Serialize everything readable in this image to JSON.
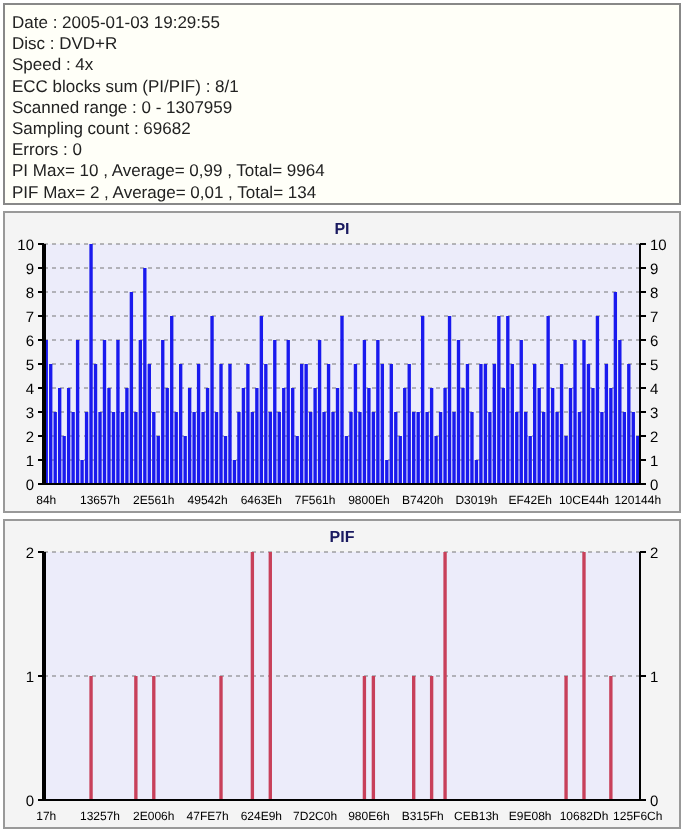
{
  "chart_data": [
    {
      "type": "bar",
      "title": "PI",
      "annotations": [
        "Date : 2005-01-03 19:29:55",
        "Disc : DVD+R",
        "Speed : 4x",
        "ECC blocks sum (PI/PIF) : 8/1",
        "Scanned range : 0 - 1307959",
        "Sampling count : 69682",
        "Errors : 0",
        "PI Max= 10 , Average= 0,99 , Total= 9964",
        "PIF Max= 2 , Average= 0,01 , Total= 134"
      ],
      "categories": [
        "84h",
        null,
        null,
        null,
        null,
        null,
        null,
        null,
        null,
        null,
        null,
        null,
        "13657h",
        null,
        null,
        null,
        null,
        null,
        null,
        null,
        null,
        null,
        null,
        null,
        "2E561h",
        null,
        null,
        null,
        null,
        null,
        null,
        null,
        null,
        null,
        null,
        null,
        "49542h",
        null,
        null,
        null,
        null,
        null,
        null,
        null,
        null,
        null,
        null,
        null,
        "6463Eh",
        null,
        null,
        null,
        null,
        null,
        null,
        null,
        null,
        null,
        null,
        null,
        "7F561h",
        null,
        null,
        null,
        null,
        null,
        null,
        null,
        null,
        null,
        null,
        null,
        "9800Eh",
        null,
        null,
        null,
        null,
        null,
        null,
        null,
        null,
        null,
        null,
        null,
        "B7420h",
        null,
        null,
        null,
        null,
        null,
        null,
        null,
        null,
        null,
        null,
        null,
        "D3019h",
        null,
        null,
        null,
        null,
        null,
        null,
        null,
        null,
        null,
        null,
        null,
        "EF42Eh",
        null,
        null,
        null,
        null,
        null,
        null,
        null,
        null,
        null,
        null,
        null,
        "10CE44h",
        null,
        null,
        null,
        null,
        null,
        null,
        null,
        null,
        null,
        null,
        null,
        "120144h"
      ],
      "series": [
        {
          "color": "#1a1aee",
          "values": [
            6,
            5,
            3,
            4,
            2,
            4,
            3,
            6,
            1,
            3,
            10,
            5,
            3,
            6,
            4,
            3,
            6,
            3,
            4,
            8,
            3,
            6,
            9,
            5,
            3,
            2,
            6,
            4,
            7,
            3,
            5,
            2,
            4,
            3,
            5,
            3,
            4,
            7,
            3,
            5,
            2,
            5,
            1,
            3,
            4,
            5,
            3,
            4,
            7,
            5,
            3,
            6,
            3,
            4,
            6,
            4,
            2,
            5,
            5,
            3,
            4,
            6,
            3,
            5,
            3,
            4,
            7,
            2,
            3,
            5,
            3,
            6,
            4,
            3,
            6,
            5,
            1,
            5,
            3,
            2,
            4,
            5,
            3,
            3,
            7,
            3,
            4,
            2,
            3,
            4,
            7,
            3,
            6,
            4,
            5,
            3,
            1,
            5,
            5,
            3,
            5,
            7,
            4,
            7,
            5,
            3,
            6,
            3,
            2,
            5,
            4,
            3,
            7,
            4,
            3,
            5,
            2,
            4,
            6,
            3,
            6,
            5,
            4,
            7,
            3,
            5,
            4,
            8,
            6,
            3,
            5,
            3,
            2
          ]
        }
      ],
      "ylim": [
        0,
        10
      ],
      "yticks": [
        0,
        1,
        2,
        3,
        4,
        5,
        6,
        7,
        8,
        9,
        10
      ],
      "y2lim": [
        0,
        10
      ],
      "y2ticks": [
        0,
        1,
        2,
        3,
        4,
        5,
        6,
        7,
        8,
        9,
        10
      ],
      "grid": "y"
    },
    {
      "type": "bar",
      "title": "PIF",
      "categories": [
        "17h",
        null,
        null,
        null,
        null,
        null,
        null,
        null,
        null,
        null,
        null,
        null,
        "13257h",
        null,
        null,
        null,
        null,
        null,
        null,
        null,
        null,
        null,
        null,
        null,
        "2E006h",
        null,
        null,
        null,
        null,
        null,
        null,
        null,
        null,
        null,
        null,
        null,
        "47FE7h",
        null,
        null,
        null,
        null,
        null,
        null,
        null,
        null,
        null,
        null,
        null,
        "624E9h",
        null,
        null,
        null,
        null,
        null,
        null,
        null,
        null,
        null,
        null,
        null,
        "7D2C0h",
        null,
        null,
        null,
        null,
        null,
        null,
        null,
        null,
        null,
        null,
        null,
        "980E6h",
        null,
        null,
        null,
        null,
        null,
        null,
        null,
        null,
        null,
        null,
        null,
        "B315Fh",
        null,
        null,
        null,
        null,
        null,
        null,
        null,
        null,
        null,
        null,
        null,
        "CEB13h",
        null,
        null,
        null,
        null,
        null,
        null,
        null,
        null,
        null,
        null,
        null,
        "E9E08h",
        null,
        null,
        null,
        null,
        null,
        null,
        null,
        null,
        null,
        null,
        null,
        "10682Dh",
        null,
        null,
        null,
        null,
        null,
        null,
        null,
        null,
        null,
        null,
        null,
        "125F6Ch"
      ],
      "series": [
        {
          "color": "#c8405a",
          "values": [
            0,
            0,
            0,
            0,
            0,
            0,
            0,
            0,
            0,
            0,
            1,
            0,
            0,
            0,
            0,
            0,
            0,
            0,
            0,
            0,
            1,
            0,
            0,
            0,
            1,
            0,
            0,
            0,
            0,
            0,
            0,
            0,
            0,
            0,
            0,
            0,
            0,
            0,
            0,
            1,
            0,
            0,
            0,
            0,
            0,
            0,
            2,
            0,
            0,
            0,
            2,
            0,
            0,
            0,
            0,
            0,
            0,
            0,
            0,
            0,
            0,
            0,
            0,
            0,
            0,
            0,
            0,
            0,
            0,
            0,
            0,
            1,
            0,
            1,
            0,
            0,
            0,
            0,
            0,
            0,
            0,
            0,
            1,
            0,
            0,
            0,
            1,
            0,
            0,
            2,
            0,
            0,
            0,
            0,
            0,
            0,
            0,
            0,
            0,
            0,
            0,
            0,
            0,
            0,
            0,
            0,
            0,
            0,
            0,
            0,
            0,
            0,
            0,
            0,
            0,
            0,
            1,
            0,
            0,
            0,
            2,
            0,
            0,
            0,
            0,
            0,
            1,
            0,
            0,
            0,
            0,
            0,
            0
          ]
        }
      ],
      "ylim": [
        0,
        2
      ],
      "yticks": [
        0,
        1,
        2
      ],
      "y2lim": [
        0,
        2
      ],
      "y2ticks": [
        0,
        1,
        2
      ],
      "grid": "y"
    }
  ]
}
